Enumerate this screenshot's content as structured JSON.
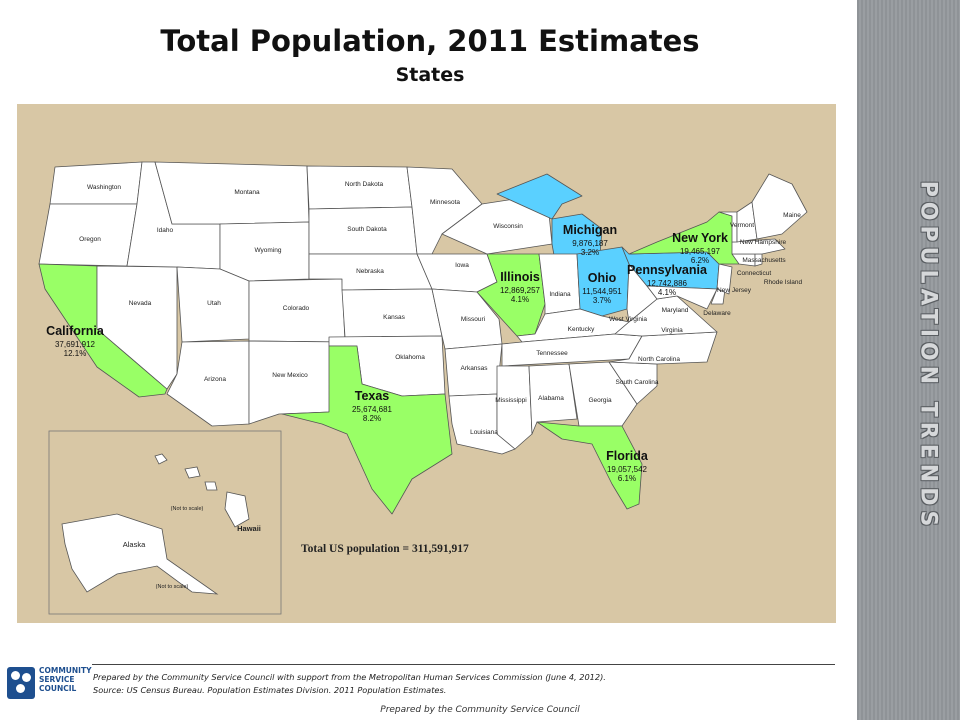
{
  "title": "Total Population, 2011 Estimates",
  "subtitle": "States",
  "side_title": "POPULATION TRENDS",
  "colors": {
    "highlight_green": "#99ff66",
    "highlight_blue": "#5ad0ff",
    "state_white": "#ffffff",
    "background": "#d8c7a5"
  },
  "highlighted_states": [
    {
      "name": "California",
      "population": "37,691,912",
      "share": "12.1%",
      "color": "green"
    },
    {
      "name": "Texas",
      "population": "25,674,681",
      "share": "8.2%",
      "color": "green"
    },
    {
      "name": "New York",
      "population": "19,465,197",
      "share": "6.2%",
      "color": "green"
    },
    {
      "name": "Florida",
      "population": "19,057,542",
      "share": "6.1%",
      "color": "green"
    },
    {
      "name": "Illinois",
      "population": "12,869,257",
      "share": "4.1%",
      "color": "green"
    },
    {
      "name": "Pennsylvania",
      "population": "12,742,886",
      "share": "4.1%",
      "color": "blue"
    },
    {
      "name": "Ohio",
      "population": "11,544,951",
      "share": "3.7%",
      "color": "blue"
    },
    {
      "name": "Michigan",
      "population": "9,876,187",
      "share": "3.2%",
      "color": "blue"
    }
  ],
  "state_labels": [
    "Washington",
    "Oregon",
    "Idaho",
    "Montana",
    "Wyoming",
    "Nevada",
    "Utah",
    "Colorado",
    "Arizona",
    "New Mexico",
    "North Dakota",
    "South Dakota",
    "Nebraska",
    "Kansas",
    "Oklahoma",
    "Minnesota",
    "Iowa",
    "Missouri",
    "Arkansas",
    "Louisiana",
    "Wisconsin",
    "Indiana",
    "Kentucky",
    "Tennessee",
    "Mississippi",
    "Alabama",
    "Georgia",
    "South Carolina",
    "North Carolina",
    "Virginia",
    "West Virginia",
    "Maryland",
    "Delaware",
    "New Jersey",
    "Connecticut",
    "Rhode Island",
    "Massachusetts",
    "Vermont",
    "New Hampshire",
    "Maine",
    "Alaska",
    "Hawaii"
  ],
  "inset_notes": [
    "(Not to scale)",
    "(Not to scale)"
  ],
  "total_label": "Total US population = 311,591,917",
  "logo": {
    "line1": "COMMUNITY",
    "line2": "SERVICE",
    "line3": "COUNCIL"
  },
  "credits": [
    "Prepared by the Community Service Council with support from the Metropolitan Human Services Commission (June 4, 2012).",
    "Source:  US Census Bureau. Population Estimates Division. 2011 Population Estimates."
  ],
  "bottom_note": "Prepared by the Community Service Council"
}
